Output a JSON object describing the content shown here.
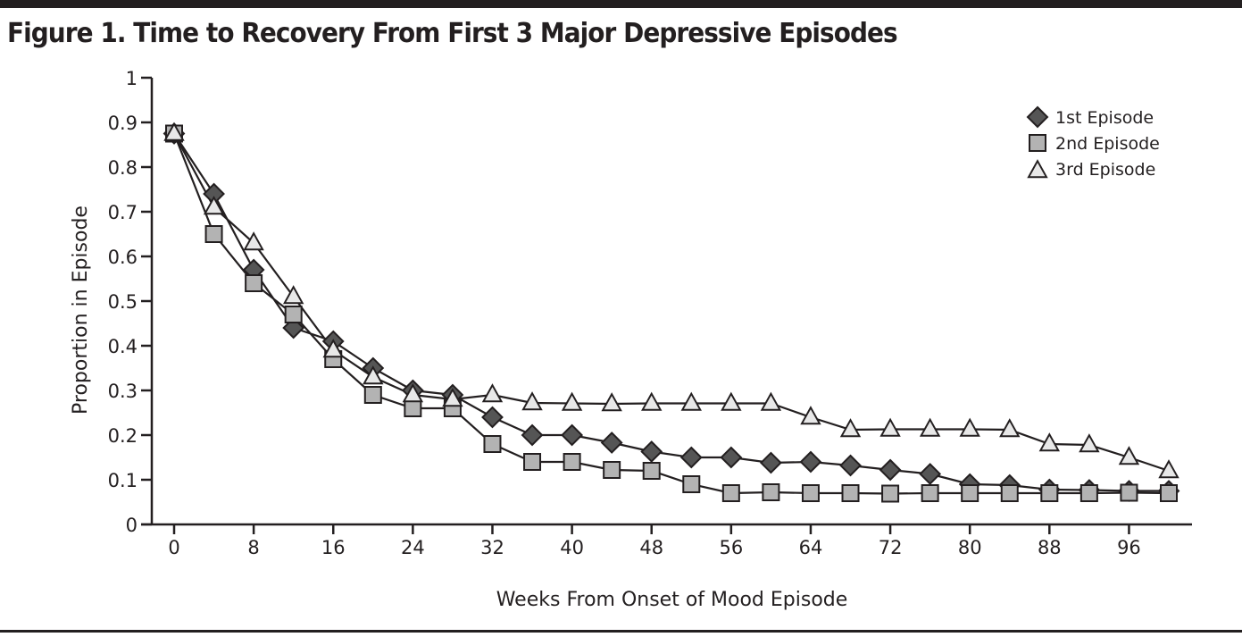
{
  "figure": {
    "title": "Figure 1. Time to Recovery From First 3 Major Depressive Episodes"
  },
  "chart_data": {
    "type": "line",
    "title": "Figure 1. Time to Recovery From First 3 Major Depressive Episodes",
    "xlabel": "Weeks From Onset of Mood Episode",
    "ylabel": "Proportion in Episode",
    "xlim": [
      -2,
      102
    ],
    "ylim": [
      0,
      1
    ],
    "x_ticks": [
      0,
      8,
      16,
      24,
      32,
      40,
      48,
      56,
      64,
      72,
      80,
      88,
      96
    ],
    "y_ticks": [
      0,
      0.1,
      0.2,
      0.3,
      0.4,
      0.5,
      0.6,
      0.7,
      0.8,
      0.9,
      1
    ],
    "y_tick_labels": [
      "0",
      "0.1",
      "0.2",
      "0.3",
      "0.4",
      "0.5",
      "0.6",
      "0.7",
      "0.8",
      "0.9",
      "1"
    ],
    "grid": false,
    "legend_position": "top-right",
    "x": [
      0,
      4,
      8,
      12,
      16,
      20,
      24,
      28,
      32,
      36,
      40,
      44,
      48,
      52,
      56,
      60,
      64,
      68,
      72,
      76,
      80,
      84,
      88,
      92,
      96,
      100
    ],
    "series": [
      {
        "name": "1st Episode",
        "marker": "diamond",
        "color": "#555555",
        "values": [
          0.875,
          0.74,
          0.57,
          0.44,
          0.41,
          0.35,
          0.3,
          0.29,
          0.24,
          0.2,
          0.2,
          0.183,
          0.163,
          0.15,
          0.15,
          0.138,
          0.14,
          0.132,
          0.122,
          0.113,
          0.09,
          0.088,
          0.078,
          0.077,
          0.075,
          0.075
        ]
      },
      {
        "name": "2nd Episode",
        "marker": "square",
        "color": "#b3b3b3",
        "values": [
          0.875,
          0.65,
          0.54,
          0.47,
          0.37,
          0.29,
          0.26,
          0.26,
          0.18,
          0.14,
          0.14,
          0.122,
          0.12,
          0.09,
          0.07,
          0.072,
          0.07,
          0.07,
          0.069,
          0.07,
          0.07,
          0.07,
          0.07,
          0.07,
          0.071,
          0.07
        ]
      },
      {
        "name": "3rd Episode",
        "marker": "triangle",
        "color": "#e8e8e8",
        "values": [
          0.875,
          0.71,
          0.63,
          0.51,
          0.39,
          0.33,
          0.29,
          0.28,
          0.29,
          0.272,
          0.271,
          0.27,
          0.271,
          0.271,
          0.271,
          0.271,
          0.24,
          0.212,
          0.213,
          0.213,
          0.213,
          0.212,
          0.18,
          0.178,
          0.15,
          0.12
        ]
      }
    ]
  }
}
